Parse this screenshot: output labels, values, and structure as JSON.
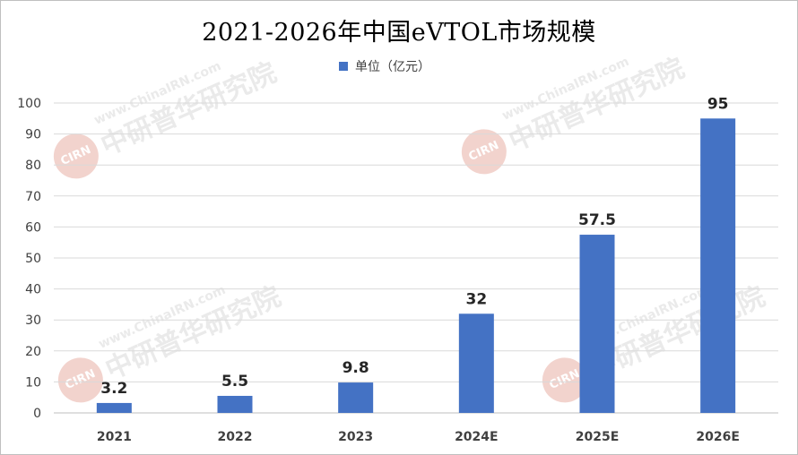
{
  "chart_data": {
    "type": "bar",
    "title": "2021-2026年中国eVTOL市场规模",
    "categories": [
      "2021",
      "2022",
      "2023",
      "2024E",
      "2025E",
      "2026E"
    ],
    "series": [
      {
        "name": "单位（亿元）",
        "values": [
          3.2,
          5.5,
          9.8,
          32,
          57.5,
          95
        ]
      }
    ],
    "data_labels": [
      "3.2",
      "5.5",
      "9.8",
      "32",
      "57.5",
      "95"
    ],
    "ylim": [
      0,
      100
    ],
    "yticks": [
      0,
      10,
      20,
      30,
      40,
      50,
      60,
      70,
      80,
      90,
      100
    ],
    "grid": true,
    "legend_position": "top-center",
    "bar_color": "#4472c4",
    "grid_color": "#d9d9d9"
  },
  "watermark": {
    "url": "www.ChinaIRN.com",
    "name": "中研普华研究院",
    "logo": "CIRN"
  }
}
